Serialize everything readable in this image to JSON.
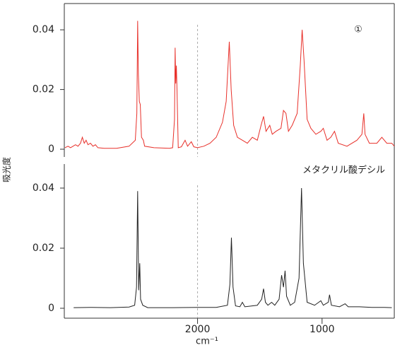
{
  "chart_data": [
    {
      "type": "line",
      "ylabel": "吸光度",
      "annotation": "①",
      "xlim": [
        4140,
        420
      ],
      "scale_change_at": 2000,
      "scale_change_ratio": 2,
      "ylim": [
        -0.0026,
        0.0488
      ],
      "yticks": [
        0,
        0.02,
        0.04
      ],
      "x": [
        4130,
        4080,
        4040,
        4000,
        3960,
        3920,
        3880,
        3850,
        3820,
        3790,
        3760,
        3720,
        3680,
        3640,
        3600,
        3500,
        3300,
        3100,
        3000,
        2975,
        2962,
        2950,
        2935,
        2920,
        2900,
        2870,
        2850,
        2700,
        2450,
        2400,
        2370,
        2360,
        2350,
        2340,
        2330,
        2310,
        2260,
        2200,
        2160,
        2100,
        2060,
        2000,
        1950,
        1900,
        1850,
        1800,
        1770,
        1745,
        1730,
        1710,
        1680,
        1640,
        1600,
        1560,
        1520,
        1490,
        1470,
        1450,
        1420,
        1400,
        1370,
        1330,
        1310,
        1290,
        1270,
        1240,
        1200,
        1175,
        1160,
        1145,
        1120,
        1090,
        1050,
        1010,
        990,
        960,
        930,
        900,
        870,
        800,
        720,
        680,
        665,
        655,
        620,
        560,
        520,
        480,
        440,
        420
      ],
      "series": [
        {
          "color": "#e8302a",
          "values": [
            0.0005,
            0.001,
            0.0005,
            0.001,
            0.0015,
            0.001,
            0.002,
            0.004,
            0.002,
            0.003,
            0.0015,
            0.002,
            0.001,
            0.0015,
            0.0005,
            0.0003,
            0.0003,
            0.001,
            0.003,
            0.012,
            0.043,
            0.025,
            0.016,
            0.015,
            0.004,
            0.003,
            0.001,
            0.0005,
            0.0003,
            0.0005,
            0.01,
            0.034,
            0.022,
            0.028,
            0.02,
            0.0005,
            0.0008,
            0.003,
            0.001,
            0.0025,
            0.0008,
            0.0005,
            0.001,
            0.002,
            0.004,
            0.009,
            0.016,
            0.036,
            0.02,
            0.008,
            0.004,
            0.003,
            0.002,
            0.004,
            0.003,
            0.008,
            0.011,
            0.006,
            0.008,
            0.005,
            0.006,
            0.007,
            0.013,
            0.012,
            0.006,
            0.008,
            0.012,
            0.028,
            0.04,
            0.03,
            0.01,
            0.007,
            0.005,
            0.006,
            0.007,
            0.003,
            0.004,
            0.006,
            0.002,
            0.001,
            0.003,
            0.005,
            0.012,
            0.005,
            0.002,
            0.002,
            0.004,
            0.002,
            0.002,
            0.001
          ]
        }
      ]
    },
    {
      "type": "line",
      "annotation": "メタクリル酸デシル",
      "xlabel": "cm⁻¹",
      "xlim": [
        4140,
        420
      ],
      "scale_change_at": 2000,
      "scale_change_ratio": 2,
      "xticks": [
        2000,
        1000
      ],
      "ylim": [
        -0.0033,
        0.048
      ],
      "yticks": [
        0,
        0.02,
        0.04
      ],
      "x": [
        3990,
        3700,
        3400,
        3100,
        3010,
        2980,
        2962,
        2945,
        2928,
        2915,
        2880,
        2800,
        2400,
        2000,
        1850,
        1760,
        1740,
        1728,
        1715,
        1695,
        1660,
        1640,
        1620,
        1520,
        1485,
        1470,
        1455,
        1435,
        1405,
        1380,
        1345,
        1325,
        1310,
        1297,
        1285,
        1255,
        1220,
        1185,
        1165,
        1150,
        1120,
        1060,
        1010,
        990,
        950,
        940,
        925,
        860,
        815,
        790,
        700,
        600,
        500,
        440
      ],
      "series": [
        {
          "color": "#222222",
          "values": [
            0.0002,
            0.0003,
            0.0002,
            0.0004,
            0.001,
            0.007,
            0.039,
            0.006,
            0.015,
            0.003,
            0.001,
            0.0002,
            0.0002,
            0.0003,
            0.0003,
            0.001,
            0.008,
            0.0235,
            0.007,
            0.0008,
            0.0005,
            0.002,
            0.0005,
            0.001,
            0.003,
            0.0065,
            0.002,
            0.001,
            0.002,
            0.001,
            0.003,
            0.011,
            0.007,
            0.0125,
            0.004,
            0.001,
            0.002,
            0.01,
            0.04,
            0.015,
            0.002,
            0.001,
            0.0025,
            0.001,
            0.002,
            0.0045,
            0.001,
            0.0005,
            0.0015,
            0.0005,
            0.0005,
            0.0003,
            0.0003,
            0.0002
          ]
        }
      ]
    }
  ]
}
